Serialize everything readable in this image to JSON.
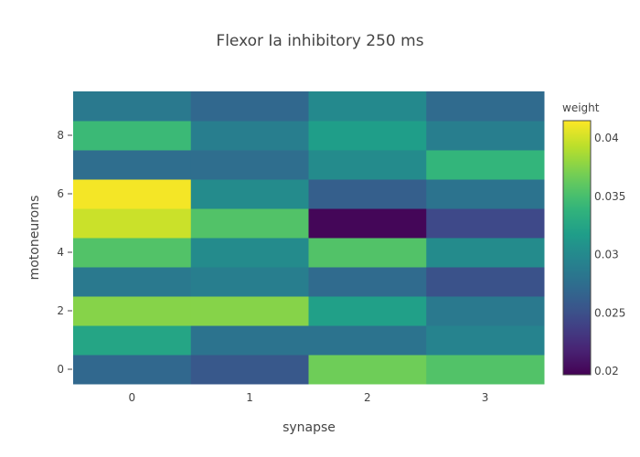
{
  "chart_data": {
    "type": "heatmap",
    "title": "Flexor Ia inhibitory 250 ms",
    "xlabel": "synapse",
    "ylabel": "motoneurons",
    "x": [
      0,
      1,
      2,
      3
    ],
    "y": [
      0,
      1,
      2,
      3,
      4,
      5,
      6,
      7,
      8,
      9
    ],
    "x_tick_labels": [
      "0",
      "1",
      "2",
      "3"
    ],
    "y_tick_labels": [
      "0",
      "2",
      "4",
      "6",
      "8"
    ],
    "z": [
      [
        0.027,
        0.0257,
        0.0367,
        0.0355
      ],
      [
        0.0325,
        0.028,
        0.028,
        0.0295
      ],
      [
        0.0375,
        0.0375,
        0.032,
        0.0285
      ],
      [
        0.0285,
        0.029,
        0.0272,
        0.0252
      ],
      [
        0.0355,
        0.0302,
        0.0355,
        0.0302
      ],
      [
        0.0398,
        0.0355,
        0.02,
        0.0245
      ],
      [
        0.0412,
        0.0302,
        0.0262,
        0.028
      ],
      [
        0.0275,
        0.0275,
        0.0302,
        0.034
      ],
      [
        0.0345,
        0.029,
        0.0318,
        0.029
      ],
      [
        0.0285,
        0.027,
        0.03,
        0.0272
      ]
    ],
    "zlim": [
      0.0197,
      0.0415
    ],
    "colorscale": "Viridis",
    "colorbar": {
      "title": "weight",
      "ticks": [
        0.02,
        0.025,
        0.03,
        0.035,
        0.04
      ],
      "tick_labels": [
        "0.02",
        "0.025",
        "0.03",
        "0.035",
        "0.04"
      ]
    },
    "grid": false
  }
}
